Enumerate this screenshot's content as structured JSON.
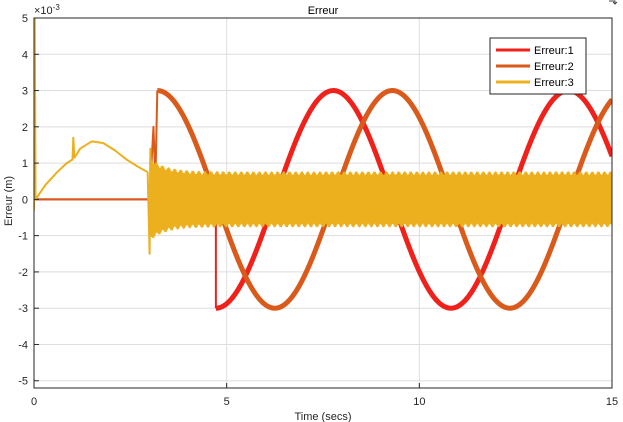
{
  "chart_data": {
    "type": "line",
    "title": "Erreur",
    "xlabel": "Time (secs)",
    "ylabel": "Erreur (m)",
    "y_multiplier_label": "×10",
    "y_multiplier_exp": "-3",
    "xlim": [
      0,
      15
    ],
    "ylim": [
      -5.2,
      5
    ],
    "x_ticks": [
      0,
      5,
      10,
      15
    ],
    "y_ticks": [
      -5,
      -4,
      -3,
      -2,
      -1,
      0,
      1,
      2,
      3,
      4,
      5
    ],
    "grid": true,
    "legend_position": "top-right",
    "series": [
      {
        "name": "Erreur:1",
        "color": "#f0201a",
        "segments": [
          {
            "x": [
              0,
              4.72
            ],
            "y": [
              0,
              0
            ]
          },
          {
            "x": [
              4.72,
              4.72,
              4.72
            ],
            "y": [
              0,
              -3.0,
              -3.0
            ]
          },
          {
            "kind": "cosine",
            "x_start": 4.72,
            "x_end": 15.0,
            "amplitude": 3.0,
            "period": 6.1,
            "phase_offset": 0.5
          }
        ]
      },
      {
        "name": "Erreur:2",
        "color": "#d95a1a",
        "segments": [
          {
            "x": [
              0,
              3.0
            ],
            "y": [
              0,
              0
            ]
          },
          {
            "x": [
              3.0,
              3.1,
              3.15,
              3.2
            ],
            "y": [
              0,
              2.0,
              0.5,
              3.0
            ]
          },
          {
            "kind": "cosine",
            "x_start": 3.2,
            "x_end": 15.0,
            "amplitude": 3.0,
            "period": 6.1,
            "phase_offset": 0.0
          }
        ]
      },
      {
        "name": "Erreur:3",
        "color": "#ecb01f",
        "segments": [
          {
            "x": [
              0,
              0.02,
              0.04
            ],
            "y": [
              -0.3,
              5.0,
              0.0
            ]
          },
          {
            "x": [
              0.04,
              0.3,
              0.6,
              0.85,
              1.0,
              1.02,
              1.05,
              1.2,
              1.5,
              1.8,
              2.1,
              2.4,
              2.7,
              2.95
            ],
            "y": [
              0.0,
              0.4,
              0.75,
              1.0,
              1.1,
              1.7,
              1.15,
              1.4,
              1.6,
              1.55,
              1.35,
              1.1,
              0.9,
              0.75
            ]
          },
          {
            "x": [
              2.95,
              3.0,
              3.02,
              3.05
            ],
            "y": [
              0.75,
              -1.5,
              1.4,
              -0.3
            ]
          },
          {
            "kind": "band",
            "x_start": 3.0,
            "x_end": 15.0,
            "upper": 0.72,
            "lower": -0.72,
            "initial_spread": 1.1
          }
        ]
      }
    ]
  }
}
